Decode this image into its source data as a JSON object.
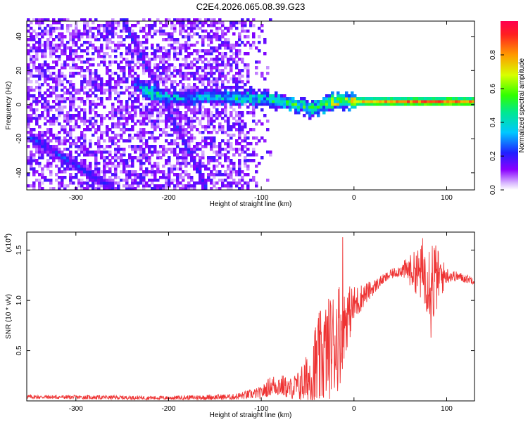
{
  "figure_title": "C2E4.2026.065.08.39.G23",
  "chart_data": [
    {
      "type": "heatmap",
      "xlabel": "Height of straight line (km)",
      "ylabel": "Frequency (Hz)",
      "xlim": [
        -353,
        130
      ],
      "ylim": [
        -50,
        49
      ],
      "xticks": [
        -300,
        -200,
        -100,
        0,
        100
      ],
      "yticks": [
        -40,
        -20,
        0,
        20,
        40
      ],
      "colorbar": {
        "label": "Normalized spectral amplitude",
        "range": [
          0,
          1
        ],
        "ticks": [
          0.0,
          0.2,
          0.4,
          0.6,
          0.8
        ]
      },
      "features": [
        {
          "kind": "main-ridge",
          "x": [
            -240,
            -220,
            -200,
            -150,
            -100,
            -70,
            -50,
            -30,
            -10,
            0,
            50,
            100,
            130
          ],
          "y": [
            12,
            6,
            3,
            4,
            3,
            0,
            -3,
            0,
            2,
            1,
            1,
            1,
            1
          ],
          "amplitude": [
            0.3,
            0.45,
            0.35,
            0.4,
            0.45,
            0.5,
            0.55,
            0.6,
            0.7,
            0.8,
            0.9,
            0.95,
            0.9
          ]
        },
        {
          "kind": "diagonal-line",
          "x": [
            -250,
            -205
          ],
          "y": [
            48,
            0
          ],
          "amplitude": 0.25
        },
        {
          "kind": "diagonal-line",
          "x": [
            -205,
            -160
          ],
          "y": [
            0,
            -50
          ],
          "amplitude": 0.25
        },
        {
          "kind": "diagonal-line",
          "x": [
            -350,
            -260
          ],
          "y": [
            -20,
            -50
          ],
          "amplitude": 0.25
        },
        {
          "kind": "noise-region",
          "x": [
            -353,
            -90
          ],
          "y": [
            -50,
            49
          ],
          "amplitude": 0.12
        }
      ]
    },
    {
      "type": "line",
      "xlabel": "Height of straight line (km)",
      "ylabel": "SNR (10 * v/v)",
      "y_multiplier": "(x10",
      "y_multiplier_exp": "4",
      "y_multiplier_close": ")",
      "xlim": [
        -353,
        130
      ],
      "ylim": [
        0,
        1.68
      ],
      "xticks": [
        -300,
        -200,
        -100,
        0,
        100
      ],
      "yticks": [
        0.5,
        1.0,
        1.5
      ],
      "ytick_labels": [
        "0.5",
        "1.0",
        "1.5"
      ],
      "series": [
        {
          "color": "#ee3333",
          "envelope": {
            "x": [
              -353,
              -200,
              -130,
              -100,
              -90,
              -80,
              -70,
              -60,
              -50,
              -40,
              -30,
              -20,
              -15,
              -10,
              0,
              10,
              20,
              30,
              40,
              50,
              60,
              70,
              80,
              85,
              90,
              100,
              110,
              130
            ],
            "base": [
              0.04,
              0.03,
              0.04,
              0.08,
              0.15,
              0.16,
              0.12,
              0.15,
              0.2,
              0.35,
              0.5,
              0.6,
              0.7,
              0.8,
              0.95,
              1.05,
              1.12,
              1.2,
              1.26,
              1.3,
              1.3,
              1.28,
              1.25,
              1.2,
              1.22,
              1.25,
              1.24,
              1.2
            ],
            "amp": [
              0.02,
              0.02,
              0.03,
              0.06,
              0.1,
              0.12,
              0.1,
              0.15,
              0.28,
              0.5,
              0.5,
              0.55,
              0.55,
              0.35,
              0.2,
              0.12,
              0.08,
              0.05,
              0.05,
              0.06,
              0.15,
              0.25,
              0.4,
              0.5,
              0.3,
              0.08,
              0.05,
              0.04
            ]
          },
          "peaks": [
            {
              "x": -12,
              "y": 1.63
            },
            {
              "x": 74,
              "y": 1.62
            },
            {
              "x": 83,
              "y": 0.63
            },
            {
              "x": -30,
              "y": 0.1
            }
          ]
        }
      ]
    }
  ]
}
